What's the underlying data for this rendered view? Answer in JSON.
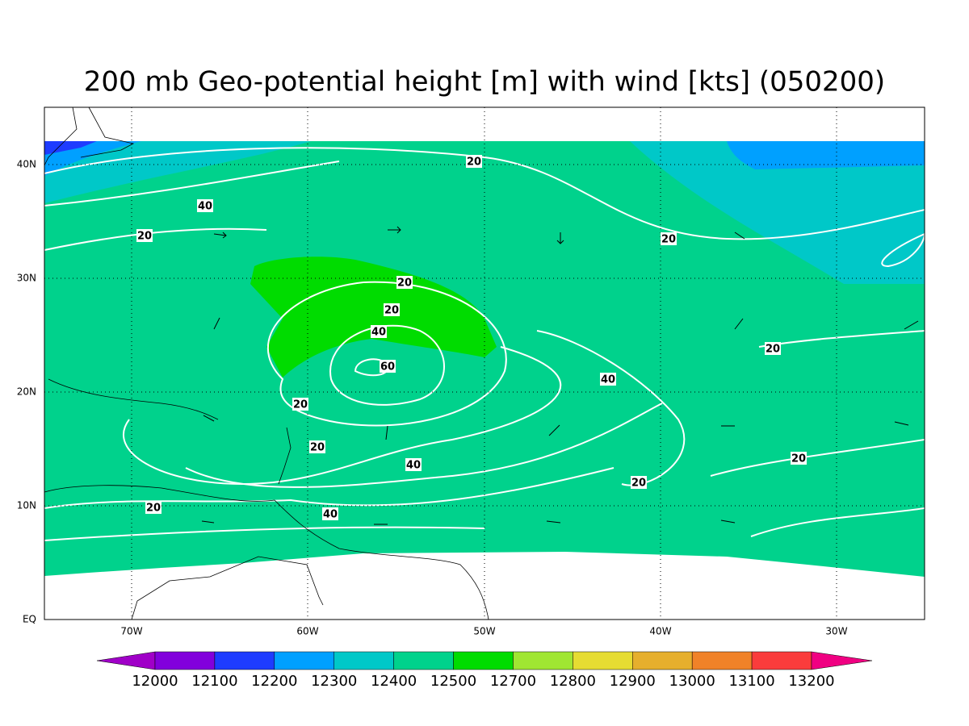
{
  "title": "200 mb Geo-potential height [m] with wind [kts] (050200)",
  "map": {
    "lat_labels": [
      "EQ",
      "10N",
      "20N",
      "30N",
      "40N"
    ],
    "lon_labels": [
      "70W",
      "60W",
      "50W",
      "40W",
      "30W"
    ],
    "contour_labels": [
      "20",
      "40",
      "20",
      "20",
      "20",
      "20",
      "40",
      "60",
      "40",
      "20",
      "20",
      "20",
      "40",
      "20",
      "20",
      "20",
      "40"
    ]
  },
  "colorbar": {
    "levels": [
      12000,
      12100,
      12200,
      12300,
      12400,
      12500,
      12700,
      12800,
      12900,
      13000,
      13100,
      13200
    ],
    "colors": [
      "#a000c8",
      "#8200dc",
      "#1e3cff",
      "#00a0ff",
      "#00c8c8",
      "#00d28c",
      "#00dc00",
      "#a0e632",
      "#e6dc32",
      "#e6af2d",
      "#f08228",
      "#fa3c3c",
      "#f00082"
    ]
  }
}
